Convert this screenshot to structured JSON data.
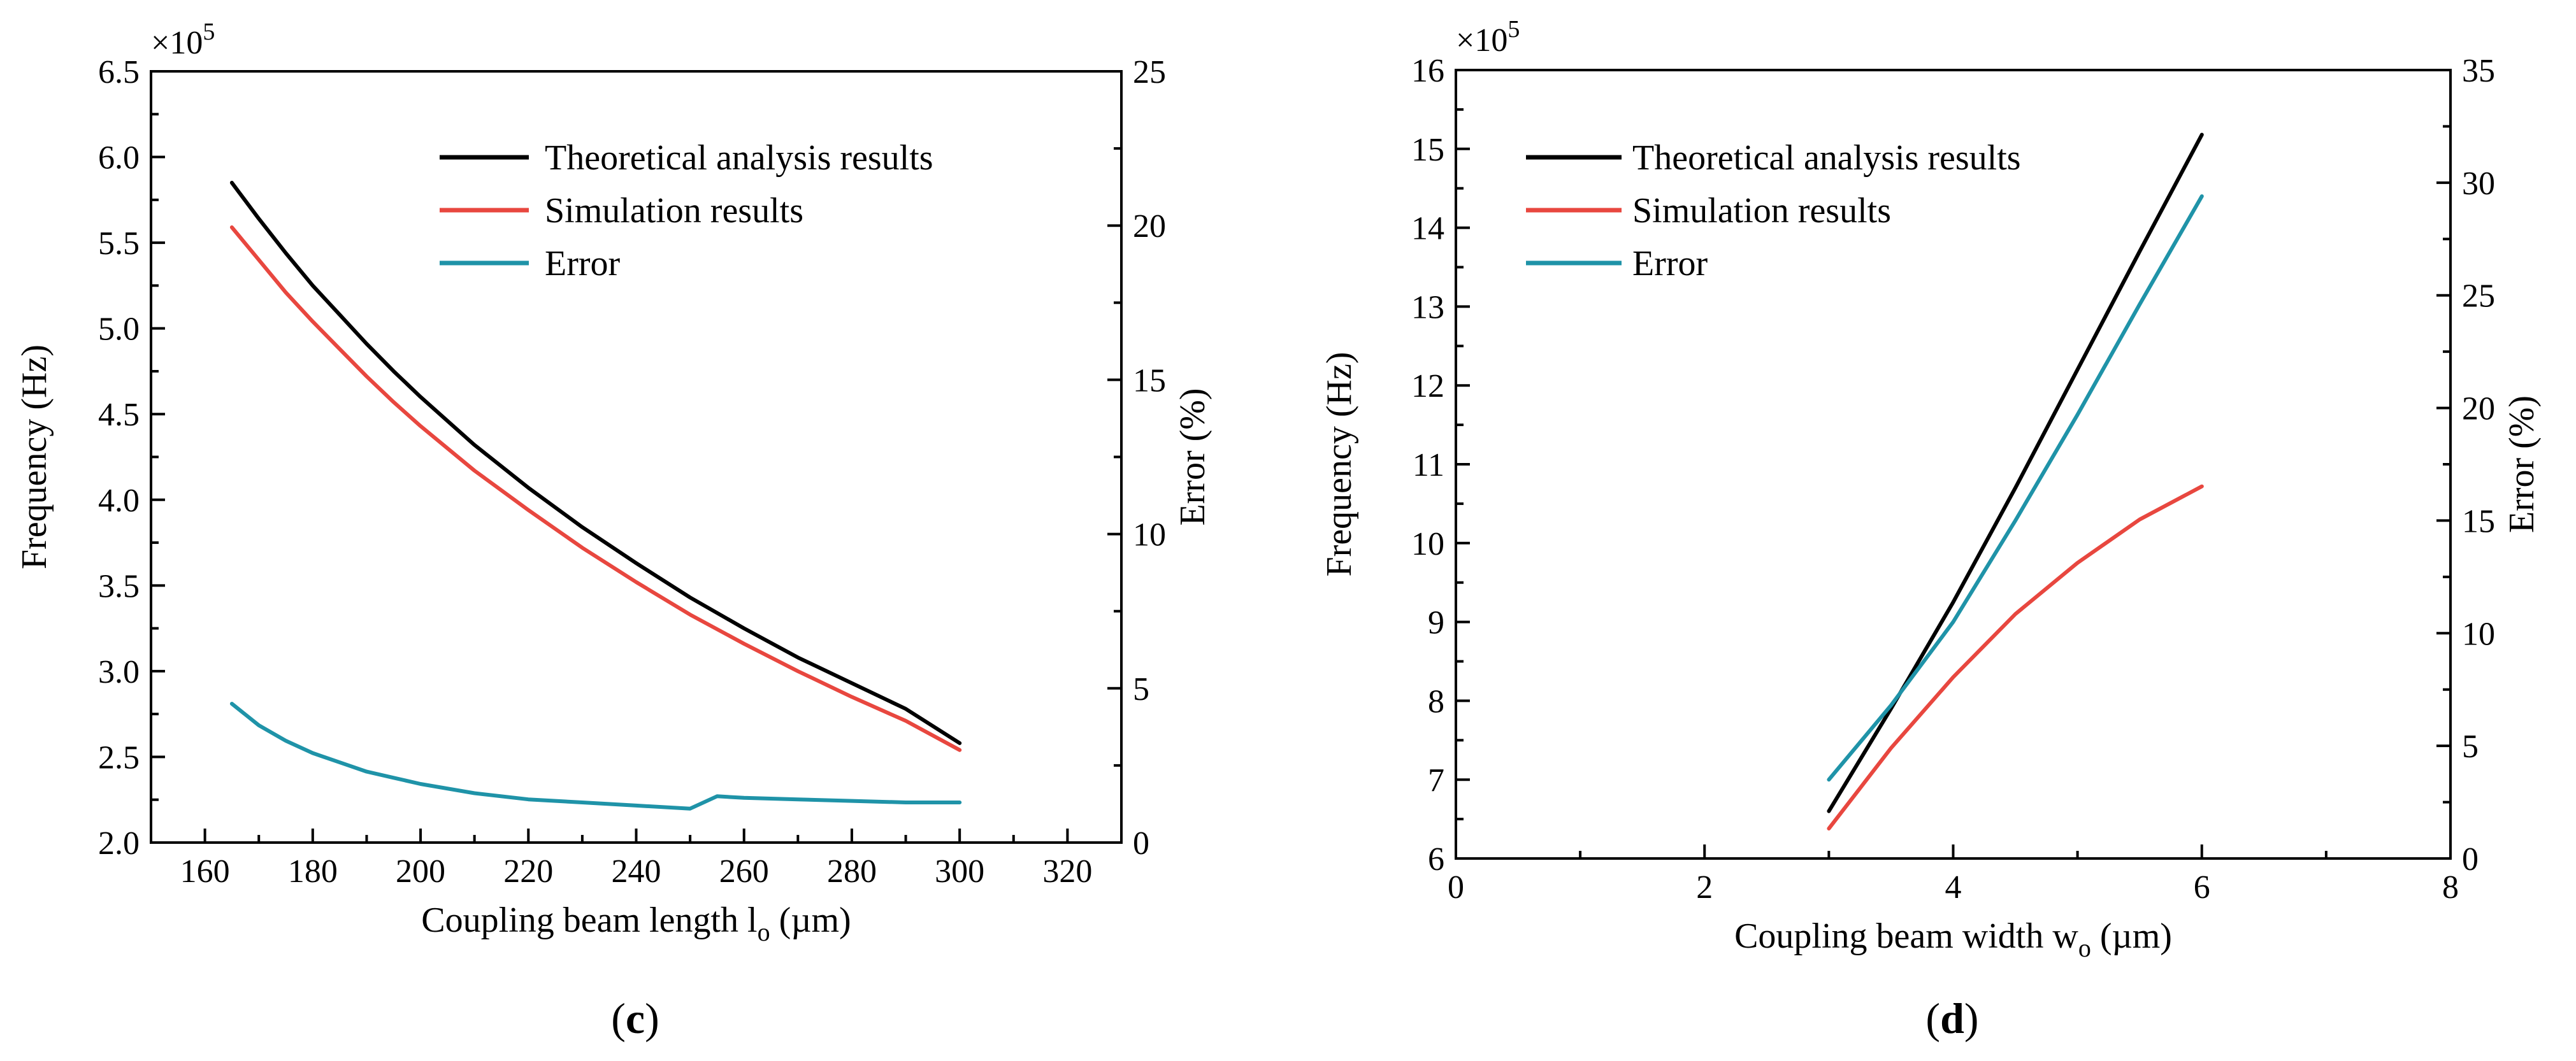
{
  "chart_data": [
    {
      "id": "c",
      "type": "line",
      "panel_label": "c",
      "xlabel": "Coupling beam length l",
      "xlabel_sub": "o",
      "xlabel_unit": " (µm)",
      "ylabel": "Frequency (Hz)",
      "y2label": "Error (%)",
      "y_multiplier": "×10",
      "y_multiplier_exp": "5",
      "xlim": [
        150,
        330
      ],
      "ylim": [
        2.0,
        6.5
      ],
      "y2lim": [
        0,
        25
      ],
      "xticks": [
        160,
        180,
        200,
        220,
        240,
        260,
        280,
        300,
        320
      ],
      "xtick_labels": [
        "160",
        "180",
        "200",
        "220",
        "240",
        "260",
        "280",
        "300",
        "320"
      ],
      "yticks": [
        2.0,
        2.5,
        3.0,
        3.5,
        4.0,
        4.5,
        5.0,
        5.5,
        6.0,
        6.5
      ],
      "ytick_labels": [
        "2.0",
        "2.5",
        "3.0",
        "3.5",
        "4.0",
        "4.5",
        "5.0",
        "5.5",
        "6.0",
        "6.5"
      ],
      "y2ticks": [
        0,
        5,
        10,
        15,
        20,
        25
      ],
      "y2tick_labels": [
        "0",
        "5",
        "10",
        "15",
        "20",
        "25"
      ],
      "legend_position": "top-right",
      "series": [
        {
          "name": "Theoretical analysis results",
          "color": "#000000",
          "axis": "left",
          "x": [
            165,
            170,
            175,
            180,
            185,
            190,
            195,
            200,
            210,
            220,
            230,
            240,
            250,
            260,
            270,
            280,
            290,
            300
          ],
          "values": [
            5.85,
            5.64,
            5.44,
            5.25,
            5.08,
            4.91,
            4.75,
            4.6,
            4.32,
            4.07,
            3.84,
            3.63,
            3.43,
            3.25,
            3.08,
            2.93,
            2.78,
            2.58
          ]
        },
        {
          "name": "Simulation results",
          "color": "#e8473f",
          "axis": "left",
          "x": [
            165,
            170,
            175,
            180,
            185,
            190,
            195,
            200,
            210,
            220,
            230,
            240,
            250,
            260,
            270,
            280,
            290,
            300
          ],
          "values": [
            5.59,
            5.4,
            5.21,
            5.04,
            4.88,
            4.72,
            4.57,
            4.43,
            4.17,
            3.94,
            3.72,
            3.52,
            3.33,
            3.16,
            3.0,
            2.85,
            2.71,
            2.54
          ]
        },
        {
          "name": "Error",
          "color": "#1f93a8",
          "axis": "right",
          "x": [
            165,
            170,
            175,
            180,
            185,
            190,
            195,
            200,
            210,
            220,
            230,
            240,
            250,
            255,
            260,
            270,
            280,
            290,
            300
          ],
          "values": [
            4.5,
            3.8,
            3.3,
            2.9,
            2.6,
            2.3,
            2.1,
            1.9,
            1.6,
            1.4,
            1.3,
            1.2,
            1.1,
            1.5,
            1.45,
            1.4,
            1.35,
            1.3,
            1.3
          ]
        }
      ]
    },
    {
      "id": "d",
      "type": "line",
      "panel_label": "d",
      "xlabel": "Coupling beam width w",
      "xlabel_sub": "o",
      "xlabel_unit": " (µm)",
      "ylabel": "Frequency (Hz)",
      "y2label": "Error (%)",
      "y_multiplier": "×10",
      "y_multiplier_exp": "5",
      "xlim": [
        0,
        8
      ],
      "ylim": [
        6,
        16
      ],
      "y2lim": [
        0,
        35
      ],
      "xticks": [
        0,
        2,
        4,
        6,
        8
      ],
      "xtick_labels": [
        "0",
        "2",
        "4",
        "6",
        "8"
      ],
      "yticks": [
        6,
        7,
        8,
        9,
        10,
        11,
        12,
        13,
        14,
        15,
        16
      ],
      "ytick_labels": [
        "6",
        "7",
        "8",
        "9",
        "10",
        "11",
        "12",
        "13",
        "14",
        "15",
        "16"
      ],
      "y2ticks": [
        0,
        5,
        10,
        15,
        20,
        25,
        30,
        35
      ],
      "y2tick_labels": [
        "0",
        "5",
        "10",
        "15",
        "20",
        "25",
        "30",
        "35"
      ],
      "legend_position": "top-left",
      "series": [
        {
          "name": "Theoretical analysis results",
          "color": "#000000",
          "axis": "left",
          "x": [
            3,
            3.5,
            4,
            4.5,
            5,
            5.5,
            6
          ],
          "values": [
            6.6,
            7.9,
            9.25,
            10.7,
            12.2,
            13.7,
            15.18
          ]
        },
        {
          "name": "Simulation results",
          "color": "#e8473f",
          "axis": "left",
          "x": [
            3,
            3.5,
            4,
            4.5,
            5,
            5.5,
            6
          ],
          "values": [
            6.38,
            7.4,
            8.3,
            9.1,
            9.75,
            10.3,
            10.72
          ]
        },
        {
          "name": "Error",
          "color": "#1f93a8",
          "axis": "right",
          "x": [
            3,
            3.5,
            4,
            4.5,
            5,
            5.5,
            6
          ],
          "values": [
            3.5,
            6.8,
            10.5,
            15.0,
            19.7,
            24.6,
            29.4
          ]
        }
      ]
    }
  ]
}
